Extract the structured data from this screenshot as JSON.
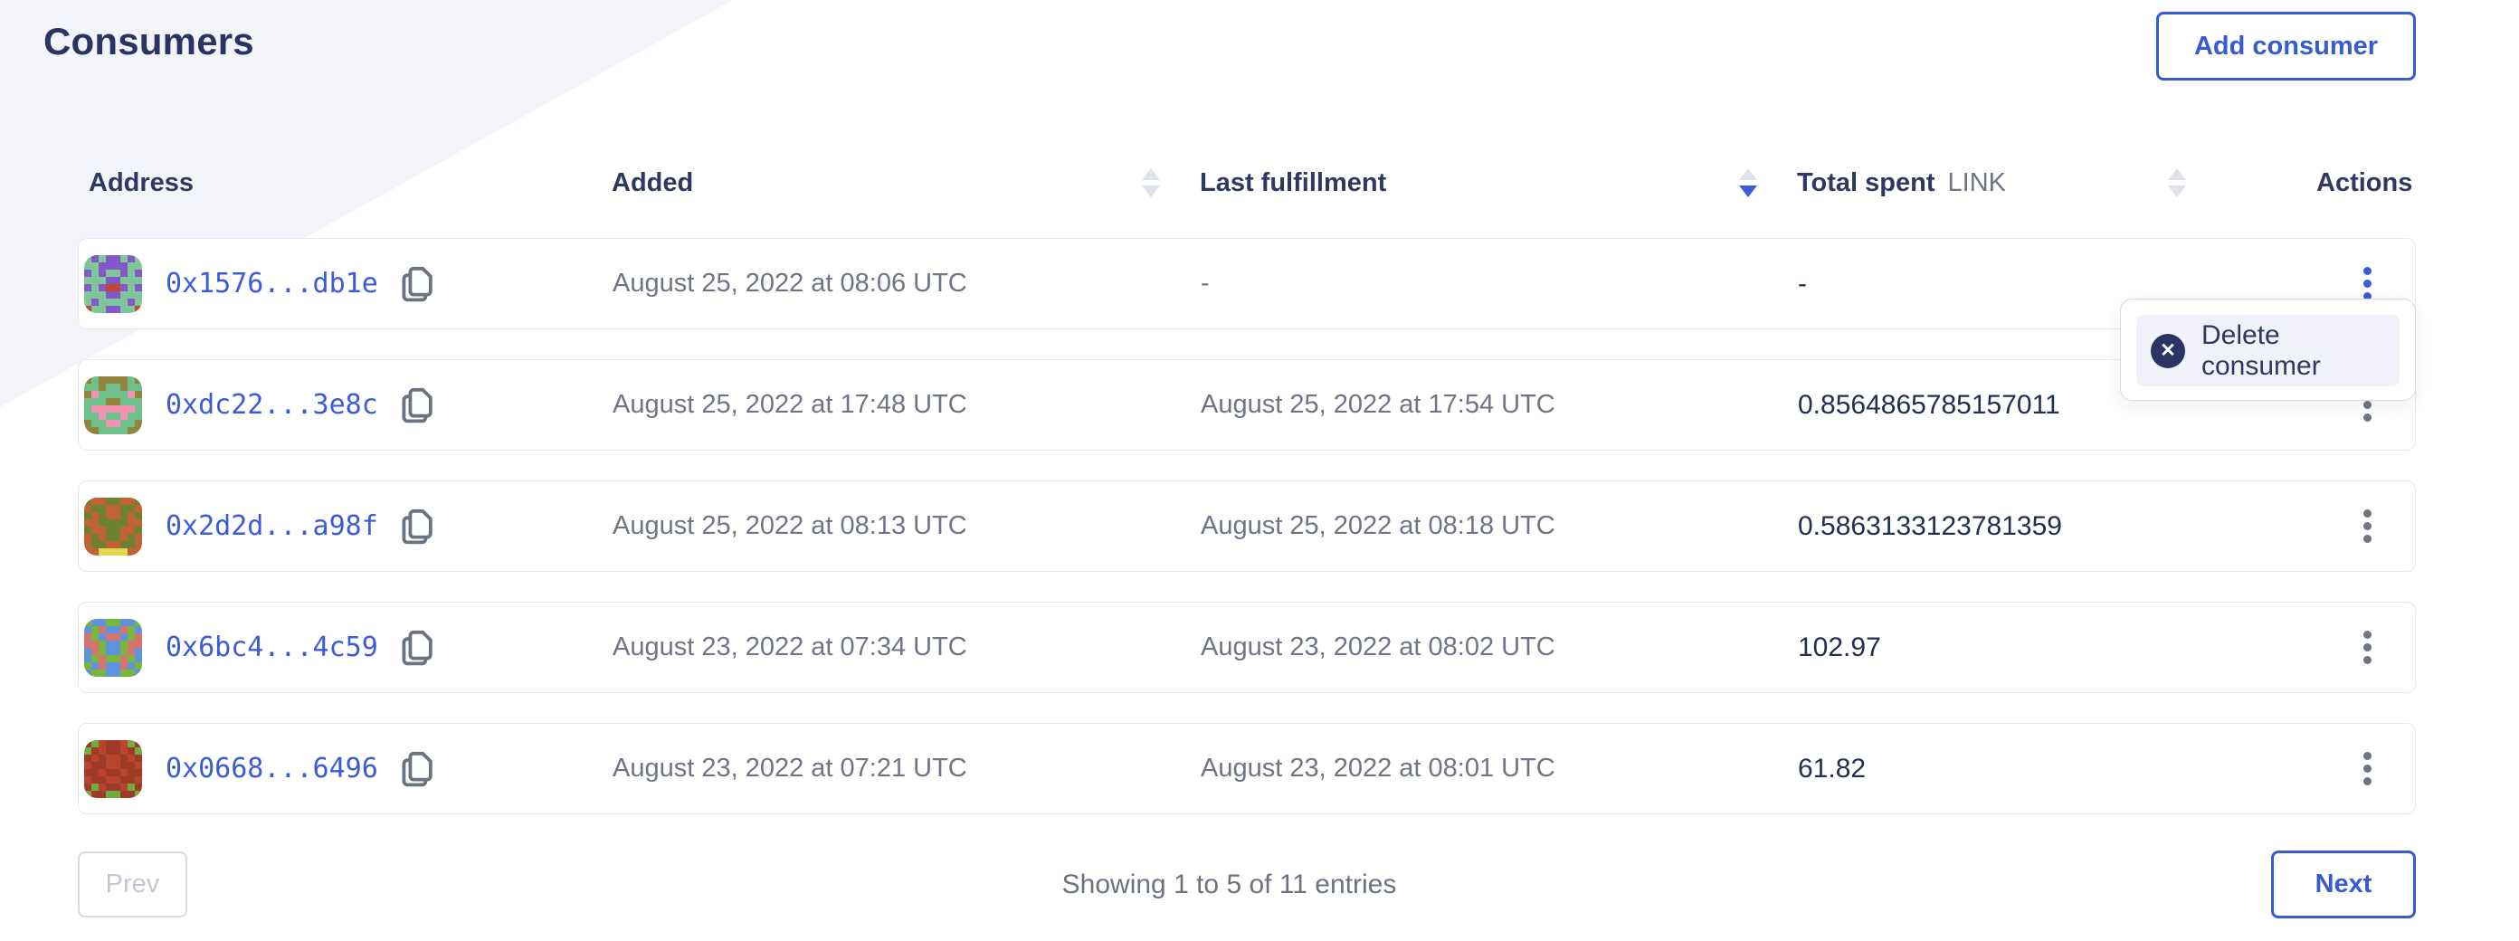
{
  "page": {
    "title": "Consumers",
    "add_button_label": "Add consumer"
  },
  "colors": {
    "accent_blue": "#375bd2",
    "link_blue": "#3b5bd8",
    "heading_navy": "#2a3464",
    "value_navy": "#232e52",
    "muted_gray": "#6f7486",
    "menu_item_bg": "#f1f2f9",
    "diagonal_bg": "#f3f4f9",
    "sort_inactive": "#dfe2e9",
    "sort_active": "#3b5bdb"
  },
  "table": {
    "columns": [
      {
        "label": "Address",
        "sort": "none"
      },
      {
        "label": "Added",
        "sort": "unsorted"
      },
      {
        "label": "Last fulfillment",
        "sort": "desc"
      },
      {
        "label": "Total spent",
        "unit": "LINK",
        "sort": "unsorted"
      },
      {
        "label": "Actions",
        "sort": "none"
      }
    ],
    "rows": [
      {
        "address": "0x1576...db1e",
        "added": "August 25, 2022 at 08:06 UTC",
        "last_fulfillment": "-",
        "total_spent": "-",
        "menu_open": true
      },
      {
        "address": "0xdc22...3e8c",
        "added": "August 25, 2022 at 17:48 UTC",
        "last_fulfillment": "August 25, 2022 at 17:54 UTC",
        "total_spent": "0.8564865785157011"
      },
      {
        "address": "0x2d2d...a98f",
        "added": "August 25, 2022 at 08:13 UTC",
        "last_fulfillment": "August 25, 2022 at 08:18 UTC",
        "total_spent": "0.5863133123781359"
      },
      {
        "address": "0x6bc4...4c59",
        "added": "August 23, 2022 at 07:34 UTC",
        "last_fulfillment": "August 23, 2022 at 08:02 UTC",
        "total_spent": "102.97"
      },
      {
        "address": "0x0668...6496",
        "added": "August 23, 2022 at 07:21 UTC",
        "last_fulfillment": "August 23, 2022 at 08:01 UTC",
        "total_spent": "61.82"
      }
    ]
  },
  "menu": {
    "items": [
      {
        "label": "Delete consumer",
        "icon": "circle-x-icon"
      }
    ]
  },
  "pagination": {
    "prev_label": "Prev",
    "next_label": "Next",
    "summary": "Showing 1 to 5 of 11 entries"
  },
  "icons": {
    "copy": "copy-icon",
    "kebab": "kebab-menu-icon",
    "sort": "sort-arrows-icon",
    "delete": "circle-x-icon",
    "close_glyph": "✕"
  },
  "avatars": [
    {
      "palette": {
        "G": "#7fc79b",
        "P": "#8158c6",
        "R": "#c14a2e"
      },
      "grid": [
        "GPGPPGPG",
        "GGPPPPGG",
        "PGPGGPGP",
        "GGGPPGGG",
        "PGPRRPGP",
        "GGGPPGGG",
        "GPGGGGPG",
        "RGGPPGGR"
      ]
    },
    {
      "palette": {
        "G": "#6ec08b",
        "O": "#8f853b",
        "P": "#ef93b1"
      },
      "grid": [
        "OGOOOOGO",
        "GGOGGOGG",
        "OPGGGGPO",
        "GGGOOGGG",
        "GPPPPPPG",
        "GGPGGPGG",
        "OGGPPGGO",
        "OOGGGGOO"
      ]
    },
    {
      "palette": {
        "O": "#c06233",
        "V": "#6e8031",
        "Y": "#e3d54d"
      },
      "grid": [
        "VOOVVOOV",
        "OVVOOVVO",
        "VOVOOVOV",
        "OOVVVVOO",
        "VOOVVOOV",
        "OVOVVOVO",
        "OVVOOVVO",
        "OOYYYYOO"
      ]
    },
    {
      "palette": {
        "B": "#5f93e0",
        "G": "#76b73a",
        "S": "#d7736d"
      },
      "grid": [
        "GBBGGBBG",
        "BGSBBSGB",
        "SGBSSBGS",
        "SSGBBGSS",
        "BSGBBGSB",
        "BGSGGSGB",
        "GBSBBSBG",
        "BGGBBGGB"
      ]
    },
    {
      "palette": {
        "M": "#9e3a28",
        "R": "#b8442e",
        "G": "#6fae3c"
      },
      "grid": [
        "MGRMMRGM",
        "GMRMMRMG",
        "MRMRRMRM",
        "RMMRRMMR",
        "MMRMMRMM",
        "RMMRRMMR",
        "MGRMMRGM",
        "GMMGGMMG"
      ]
    }
  ]
}
